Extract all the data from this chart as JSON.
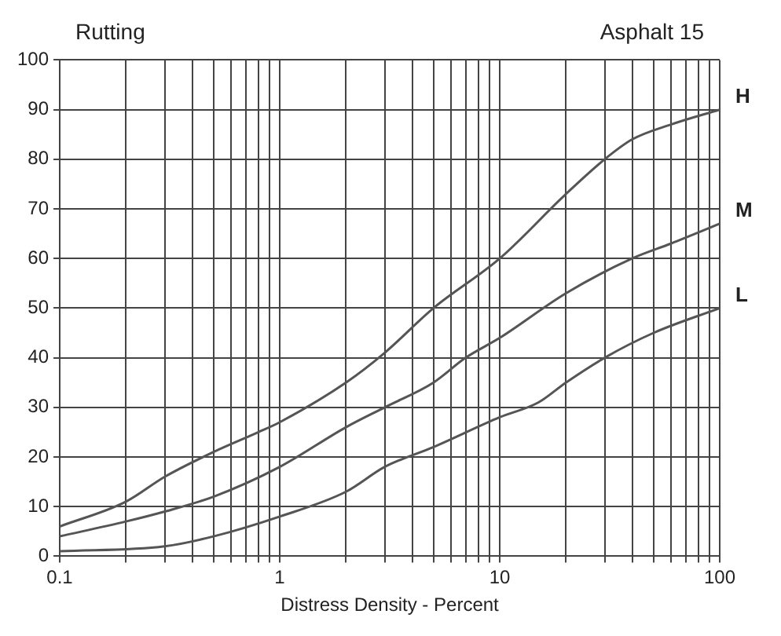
{
  "chart_data": {
    "type": "line",
    "title": "Rutting",
    "subtitle": "Asphalt 15",
    "xlabel": "Distress Density - Percent",
    "log": "x",
    "grid": true,
    "legend": false,
    "marker": "none",
    "line_style": "solid",
    "xlim": [
      0.1,
      100
    ],
    "ylim": [
      0,
      100
    ],
    "xticks": [
      0.1,
      {
        "value": 0.2,
        "label": null
      },
      {
        "value": 0.3,
        "label": null
      },
      {
        "value": 0.4,
        "label": null
      },
      {
        "value": 0.5,
        "label": null
      },
      {
        "value": 0.6,
        "label": null
      },
      {
        "value": 0.7,
        "label": null
      },
      {
        "value": 0.8,
        "label": null
      },
      {
        "value": 0.9,
        "label": null
      },
      1,
      {
        "value": 2,
        "label": null
      },
      {
        "value": 3,
        "label": null
      },
      {
        "value": 4,
        "label": null
      },
      {
        "value": 5,
        "label": null
      },
      {
        "value": 6,
        "label": null
      },
      {
        "value": 7,
        "label": null
      },
      {
        "value": 8,
        "label": null
      },
      {
        "value": 9,
        "label": null
      },
      10,
      {
        "value": 20,
        "label": null
      },
      {
        "value": 30,
        "label": null
      },
      {
        "value": 40,
        "label": null
      },
      {
        "value": 50,
        "label": null
      },
      {
        "value": 60,
        "label": null
      },
      {
        "value": 70,
        "label": null
      },
      {
        "value": 80,
        "label": null
      },
      {
        "value": 90,
        "label": null
      },
      100
    ],
    "yticks": [
      0,
      10,
      20,
      30,
      40,
      50,
      60,
      70,
      80,
      90,
      100
    ],
    "series": [
      {
        "name": "H",
        "color": "#555555",
        "x": [
          0.1,
          0.2,
          0.3,
          0.5,
          0.8,
          1,
          2,
          3,
          5,
          10,
          20,
          30,
          40,
          60,
          100
        ],
        "values": [
          6,
          11,
          16,
          21,
          25,
          27,
          35,
          41,
          50,
          60,
          73,
          80,
          84,
          87,
          90
        ]
      },
      {
        "name": "M",
        "color": "#555555",
        "x": [
          0.1,
          0.2,
          0.3,
          0.5,
          1,
          2,
          3,
          5,
          7,
          10,
          20,
          40,
          60,
          100
        ],
        "values": [
          4,
          7,
          9,
          12,
          18,
          26,
          30,
          35,
          40,
          44,
          53,
          60,
          63,
          67
        ]
      },
      {
        "name": "L",
        "color": "#555555",
        "x": [
          0.1,
          0.3,
          0.5,
          1,
          2,
          3,
          5,
          10,
          15,
          20,
          30,
          50,
          100
        ],
        "values": [
          1,
          2,
          4,
          8,
          13,
          18,
          22,
          28,
          31,
          35,
          40,
          45,
          50
        ]
      }
    ]
  }
}
